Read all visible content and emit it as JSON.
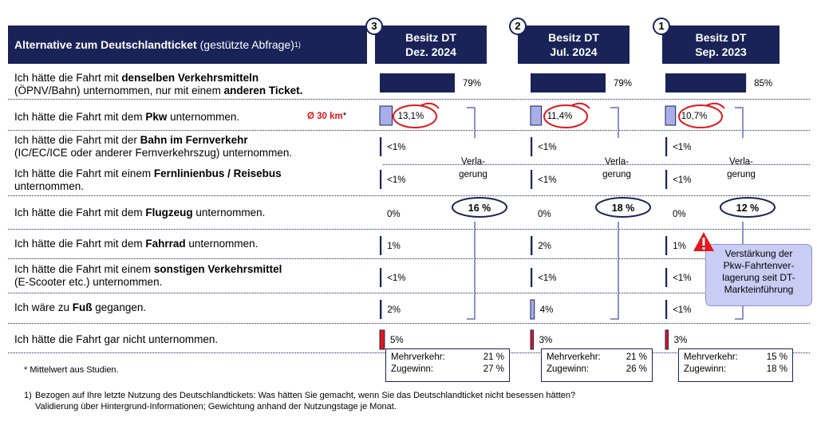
{
  "header": {
    "title_bold": "Alternative zum Deutschlandticket",
    "title_normal": "(gestützte Abfrage)",
    "title_sup": "1)"
  },
  "rows": [
    {
      "pre": "Ich hätte die Fahrt mit ",
      "b1": "denselben Verkehrsmitteln",
      "mid": "",
      "line2_pre": "(ÖPNV/Bahn) unternommen, nur mit einem ",
      "b2": "anderen Ticket.",
      "post": ""
    },
    {
      "pre": "Ich hätte die Fahrt mit dem ",
      "b1": "Pkw",
      "mid": " unternommen.",
      "line2_pre": "",
      "b2": "",
      "post": ""
    },
    {
      "pre": "Ich hätte die Fahrt mit der ",
      "b1": "Bahn im Fernverkehr",
      "mid": "",
      "line2_pre": "(IC/EC/ICE oder anderer Fernverkehrszug) unternommen.",
      "b2": "",
      "post": ""
    },
    {
      "pre": "Ich hätte die Fahrt mit einem ",
      "b1": "Fernlinienbus / Reisebus",
      "mid": "",
      "line2_pre": "unternommen.",
      "b2": "",
      "post": ""
    },
    {
      "pre": "Ich hätte die Fahrt mit dem ",
      "b1": "Flugzeug",
      "mid": " unternommen.",
      "line2_pre": "",
      "b2": "",
      "post": ""
    },
    {
      "pre": "Ich hätte die Fahrt mit dem ",
      "b1": "Fahrrad",
      "mid": " unternommen.",
      "line2_pre": "",
      "b2": "",
      "post": ""
    },
    {
      "pre": "Ich hätte die Fahrt mit einem ",
      "b1": "sonstigen Verkehrsmittel",
      "mid": "",
      "line2_pre": "(E-Scooter etc.) unternommen.",
      "b2": "",
      "post": ""
    },
    {
      "pre": "Ich wäre zu ",
      "b1": "Fuß",
      "mid": " gegangen.",
      "line2_pre": "",
      "b2": "",
      "post": ""
    },
    {
      "pre": "Ich hätte die Fahrt gar nicht unternommen.",
      "b1": "",
      "mid": "",
      "line2_pre": "",
      "b2": "",
      "post": ""
    }
  ],
  "pkw_note": {
    "text": "Ø 30 km",
    "asterisk": "*"
  },
  "footnote_star": "* Mittelwert aus Studien.",
  "footnote_1": {
    "num": "1)",
    "line1": "Bezogen auf Ihre letzte Nutzung des Deutschlandtickets: Was hätten Sie gemacht, wenn Sie das Deutschlandticket nicht besessen hätten?",
    "line2": "Validierung über Hintergrund-Informationen; Gewichtung anhand der Nutzungstage je Monat."
  },
  "warning": {
    "icon": "warning-triangle-icon",
    "text": [
      "Verstärkung der",
      "Pkw-Fahrtenver-",
      "lagerung seit DT-",
      "Markteinführung"
    ]
  },
  "colors": {
    "navy": "#1a2358",
    "light_bar": "#a9aee8",
    "red": "#e3161b"
  },
  "chart_data": {
    "type": "bar",
    "categories": [
      "Gleiche Verkehrsmittel, anderes Ticket",
      "Pkw",
      "Bahn im Fernverkehr",
      "Fernlinienbus / Reisebus",
      "Flugzeug",
      "Fahrrad",
      "Sonstiges Verkehrsmittel",
      "Zu Fuß",
      "Gar nicht"
    ],
    "series": [
      {
        "name": "Besitz DT Dez. 2024",
        "badge": "3",
        "line1": "Besitz DT",
        "line2": "Dez. 2024",
        "values": [
          79,
          13.1,
          0.5,
          0.5,
          0,
          1,
          0.5,
          2,
          5
        ],
        "labels": [
          "79%",
          "13,1%",
          "<1%",
          "<1%",
          "0%",
          "1%",
          "<1%",
          "2%",
          "5%"
        ],
        "verlagerung_label": [
          "Verla-",
          "gerung"
        ],
        "verlagerung": "16 %",
        "summary": {
          "mehrverkehr_label": "Mehrverkehr:",
          "mehrverkehr": "21 %",
          "zugewinn_label": "Zugewinn:",
          "zugewinn": "27 %"
        }
      },
      {
        "name": "Besitz DT Jul. 2024",
        "badge": "2",
        "line1": "Besitz DT",
        "line2": "Jul. 2024",
        "values": [
          79,
          11.4,
          0.5,
          0.5,
          0,
          2,
          0.5,
          4,
          3
        ],
        "labels": [
          "79%",
          "11,4%",
          "<1%",
          "<1%",
          "0%",
          "2%",
          "<1%",
          "4%",
          "3%"
        ],
        "verlagerung_label": [
          "Verla-",
          "gerung"
        ],
        "verlagerung": "18 %",
        "summary": {
          "mehrverkehr_label": "Mehrverkehr:",
          "mehrverkehr": "21 %",
          "zugewinn_label": "Zugewinn:",
          "zugewinn": "26 %"
        }
      },
      {
        "name": "Besitz DT Sep. 2023",
        "badge": "1",
        "line1": "Besitz DT",
        "line2": "Sep. 2023",
        "values": [
          85,
          10.7,
          0.5,
          0.5,
          0,
          1,
          0.5,
          0.5,
          3
        ],
        "labels": [
          "85%",
          "10,7%",
          "<1%",
          "<1%",
          "0%",
          "1%",
          "<1%",
          "<1%",
          "3%"
        ],
        "verlagerung_label": [
          "Verla-",
          "gerung"
        ],
        "verlagerung": "12 %",
        "summary": {
          "mehrverkehr_label": "Mehrverkehr:",
          "mehrverkehr": "15 %",
          "zugewinn_label": "Zugewinn:",
          "zugewinn": "18 %"
        }
      }
    ],
    "ylim": [
      0,
      100
    ]
  }
}
